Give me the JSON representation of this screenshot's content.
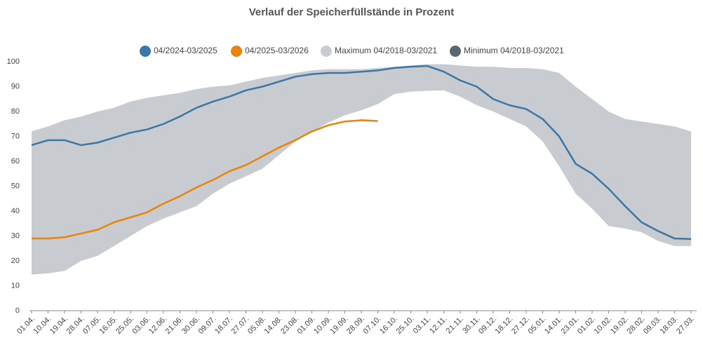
{
  "chart_data": {
    "type": "line",
    "title": "Verlauf der Speicherfüllstände in Prozent",
    "categories": [
      "01.04.",
      "10.04.",
      "19.04.",
      "28.04.",
      "07.05.",
      "16.05.",
      "25.05.",
      "03.06.",
      "12.06.",
      "21.06.",
      "30.06.",
      "09.07.",
      "18.07.",
      "27.07.",
      "05.08.",
      "14.08.",
      "23.08.",
      "01.09.",
      "10.09.",
      "19.09.",
      "28.09.",
      "07.10.",
      "16.10.",
      "25.10.",
      "03.11.",
      "12.11.",
      "21.11.",
      "30.11.",
      "09.12.",
      "18.12.",
      "27.12.",
      "05.01.",
      "14.01.",
      "23.01.",
      "01.02.",
      "10.02.",
      "19.02.",
      "28.02.",
      "09.03.",
      "18.03.",
      "27.03."
    ],
    "series": [
      {
        "name": "04/2024-03/2025",
        "color": "#3a76a6",
        "values": [
          66.5,
          68.5,
          68.5,
          66.5,
          67.5,
          69.5,
          71.5,
          72.8,
          75,
          78,
          81.5,
          84,
          86,
          88.5,
          90,
          92,
          94,
          95,
          95.5,
          95.5,
          96,
          96.5,
          97.5,
          98,
          98.3,
          96,
          92.5,
          90,
          85,
          82.5,
          81,
          77,
          70,
          59,
          55,
          49,
          42,
          35.5,
          32,
          29,
          28.8
        ]
      },
      {
        "name": "04/2025-03/2026",
        "color": "#e8830c",
        "values": [
          29,
          29,
          29.5,
          31,
          32.5,
          35.5,
          37.5,
          39.5,
          43,
          46,
          49.5,
          52.5,
          56,
          58.5,
          62,
          65.5,
          68.5,
          72,
          74.5,
          76,
          76.5,
          76.2,
          null,
          null,
          null,
          null,
          null,
          null,
          null,
          null,
          null,
          null,
          null,
          null,
          null,
          null,
          null,
          null,
          null,
          null,
          null
        ]
      },
      {
        "name": "Maximum 04/2018-03/2021",
        "color": "#c8ccd0",
        "values": [
          72,
          74,
          76.5,
          78,
          80,
          81.5,
          84,
          85.5,
          86.5,
          87.5,
          89,
          90,
          90.5,
          92,
          93.5,
          94.5,
          95.5,
          96.5,
          97,
          97,
          97,
          97.5,
          98,
          98.5,
          99,
          99,
          98.5,
          98,
          98,
          97.5,
          97.5,
          97,
          95.5,
          90,
          85,
          80,
          77,
          76,
          75,
          74,
          72
        ]
      },
      {
        "name": "Minimum 04/2018-03/2021",
        "color": "#5b6770",
        "values": [
          14.5,
          15,
          16,
          20,
          22,
          26,
          30,
          34,
          37,
          39.5,
          42,
          47,
          51,
          54,
          57,
          62.5,
          68,
          72,
          75.5,
          78.5,
          80.5,
          83,
          87,
          88,
          88.3,
          88.5,
          86,
          82.5,
          80,
          77,
          74,
          68,
          58,
          47,
          41,
          34,
          33,
          31.5,
          28,
          26,
          26
        ]
      }
    ],
    "ylim": [
      0,
      100
    ],
    "yticks": [
      0,
      10,
      20,
      30,
      40,
      50,
      60,
      70,
      80,
      90,
      100
    ],
    "grid": false,
    "legend": "top"
  }
}
